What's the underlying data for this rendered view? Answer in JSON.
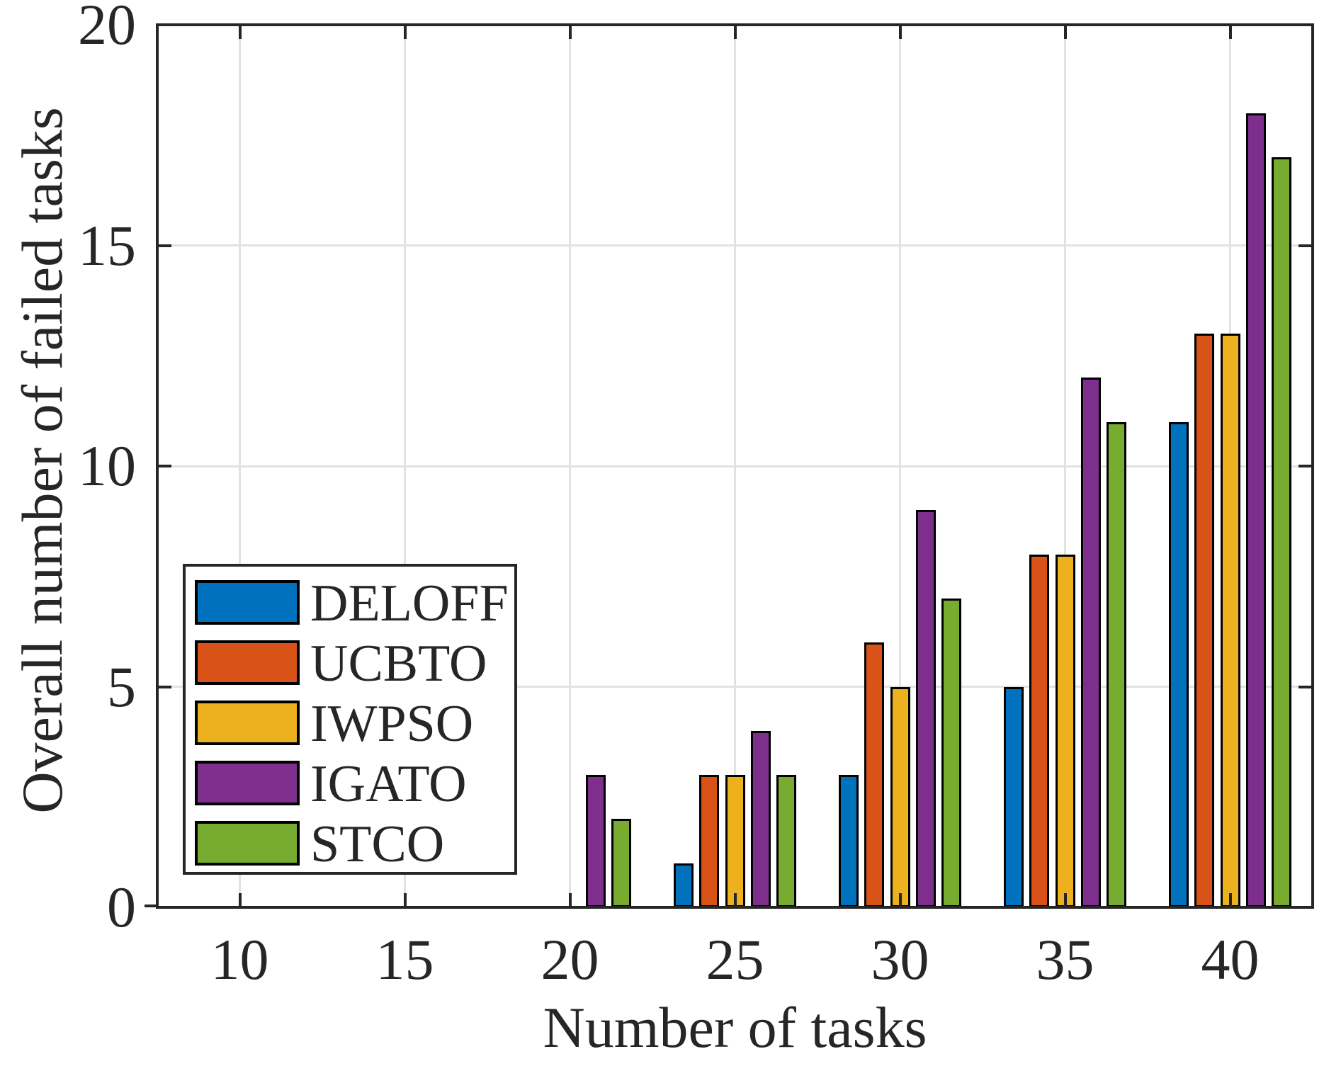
{
  "chart_data": {
    "type": "bar",
    "title": "",
    "xlabel": "Number of tasks",
    "ylabel": "Overall number of failed tasks",
    "categories": [
      10,
      15,
      20,
      25,
      30,
      35,
      40
    ],
    "xtick_labels": [
      "10",
      "15",
      "20",
      "25",
      "30",
      "35",
      "40"
    ],
    "ytick_labels": [
      "0",
      "5",
      "10",
      "15",
      "20"
    ],
    "yticks": [
      0,
      5,
      10,
      15,
      20
    ],
    "xlim": [
      7.5,
      42.5
    ],
    "ylim": [
      0,
      20
    ],
    "grid": true,
    "legend_position": "inside-lower-left",
    "series": [
      {
        "name": "DELOFF",
        "color": "#0072BD",
        "values": [
          0,
          0,
          0,
          1,
          3,
          5,
          11
        ]
      },
      {
        "name": "UCBTO",
        "color": "#D95319",
        "values": [
          0,
          0,
          0,
          3,
          6,
          8,
          13
        ]
      },
      {
        "name": "IWPSO",
        "color": "#EDB120",
        "values": [
          0,
          0,
          0,
          3,
          5,
          8,
          13
        ]
      },
      {
        "name": "IGATO",
        "color": "#7E2F8E",
        "values": [
          0,
          0,
          3,
          4,
          9,
          12,
          18
        ]
      },
      {
        "name": "STCO",
        "color": "#77AC30",
        "values": [
          0,
          0,
          2,
          3,
          7,
          11,
          17
        ]
      }
    ],
    "colors": {
      "axis": "#262626",
      "grid": "#e2e2e2",
      "bar_edge": "#000000",
      "background": "#ffffff"
    }
  }
}
